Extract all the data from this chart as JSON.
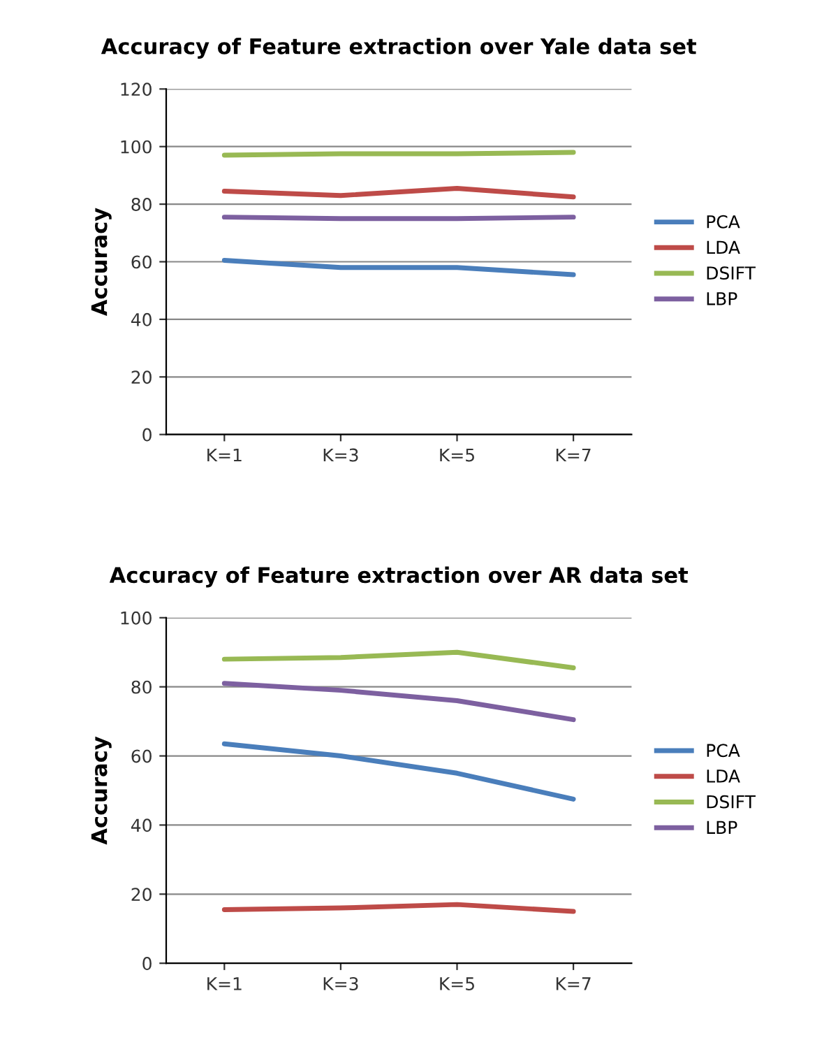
{
  "chart_data": [
    {
      "type": "line",
      "title": "Accuracy of Feature extraction over Yale data set",
      "ylabel": "Accuracy",
      "categories": [
        "K=1",
        "K=3",
        "K=5",
        "K=7"
      ],
      "ylim": [
        0,
        120
      ],
      "yticks": [
        0,
        20,
        40,
        60,
        80,
        100,
        120
      ],
      "grid": "y",
      "legend": "right",
      "marker": "none",
      "series": [
        {
          "name": "PCA",
          "color": "#4a7ebb",
          "values": [
            60.5,
            58,
            58,
            55.5
          ]
        },
        {
          "name": "LDA",
          "color": "#be4b48",
          "values": [
            84.5,
            83,
            85.5,
            82.5
          ]
        },
        {
          "name": "DSIFT",
          "color": "#98b954",
          "values": [
            97,
            97.5,
            97.5,
            98
          ]
        },
        {
          "name": "LBP",
          "color": "#7d60a0",
          "values": [
            75.5,
            75,
            75,
            75.5
          ]
        }
      ]
    },
    {
      "type": "line",
      "title": "Accuracy of Feature extraction over AR data set",
      "ylabel": "Accuracy",
      "categories": [
        "K=1",
        "K=3",
        "K=5",
        "K=7"
      ],
      "ylim": [
        0,
        100
      ],
      "yticks": [
        0,
        20,
        40,
        60,
        80,
        100
      ],
      "grid": "y",
      "legend": "right",
      "marker": "none",
      "series": [
        {
          "name": "PCA",
          "color": "#4a7ebb",
          "values": [
            63.5,
            60,
            55,
            47.5
          ]
        },
        {
          "name": "LDA",
          "color": "#be4b48",
          "values": [
            15.5,
            16,
            17,
            15
          ]
        },
        {
          "name": "DSIFT",
          "color": "#98b954",
          "values": [
            88,
            88.5,
            90,
            85.5
          ]
        },
        {
          "name": "LBP",
          "color": "#7d60a0",
          "values": [
            81,
            79,
            76,
            70.5
          ]
        }
      ]
    }
  ]
}
